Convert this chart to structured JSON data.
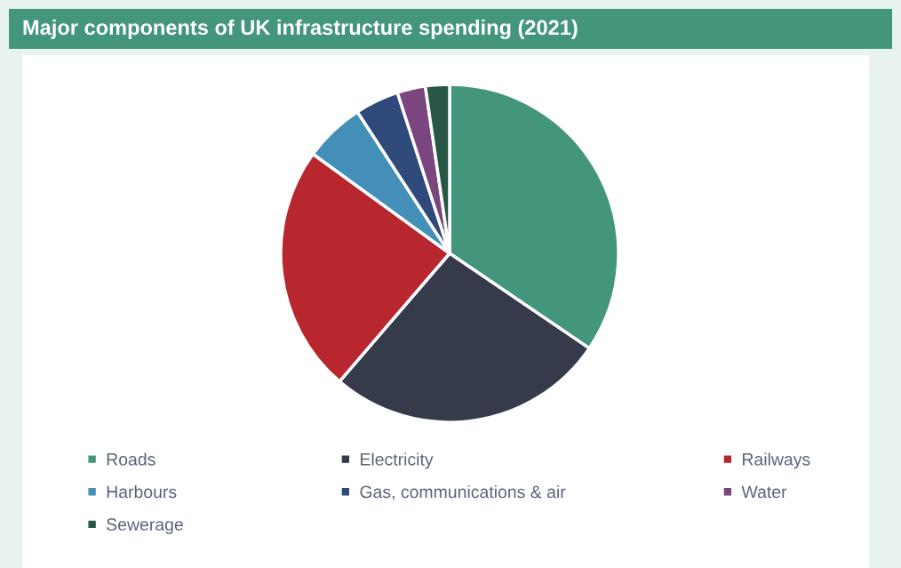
{
  "chart_data": {
    "type": "pie",
    "title": "Major components of UK infrastructure spending (2021)",
    "categories": [
      "Roads",
      "Electricity",
      "Railways",
      "Harbours",
      "Gas, communications & air",
      "Water",
      "Sewerage"
    ],
    "values": [
      34.5,
      26.8,
      23.7,
      5.8,
      4.2,
      2.7,
      2.3
    ],
    "colors": [
      "#43967c",
      "#353b4a",
      "#b8262e",
      "#448fb8",
      "#2f4a7a",
      "#7b4580",
      "#285746"
    ],
    "legend": "bottom"
  }
}
